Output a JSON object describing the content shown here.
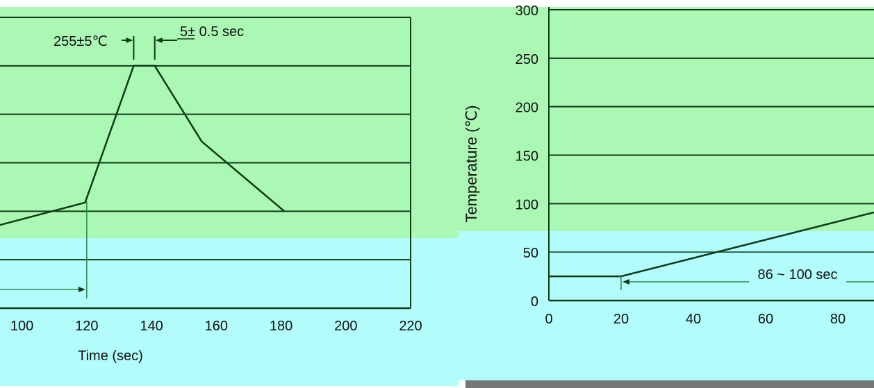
{
  "chart_data": [
    {
      "type": "line",
      "panel": "left",
      "xlabel": "Time  (sec)",
      "ylabel": "",
      "xlim": [
        90,
        220
      ],
      "ylim": [
        0,
        300
      ],
      "x_ticks": [
        100,
        120,
        140,
        160,
        180,
        200,
        220
      ],
      "y_gridlines": [
        50,
        100,
        150,
        200,
        250,
        300
      ],
      "grid": true,
      "series": [
        {
          "x": [
            90,
            119.5,
            134.5,
            141,
            155.5,
            181
          ],
          "y": [
            83,
            109,
            250,
            250,
            172,
            100
          ]
        }
      ],
      "annotations": {
        "peak_temp": "255±5℃",
        "peak_time": "5± 0.5 sec"
      },
      "marker_x": 120
    },
    {
      "type": "line",
      "panel": "right",
      "xlabel": "",
      "ylabel": "Temperature (℃)",
      "xlim": [
        0,
        90
      ],
      "ylim": [
        0,
        300
      ],
      "x_ticks": [
        0,
        20,
        40,
        60,
        80
      ],
      "y_ticks": [
        0,
        50,
        100,
        150,
        200,
        250,
        300
      ],
      "grid": true,
      "series": [
        {
          "x": [
            0,
            20,
            90
          ],
          "y": [
            25,
            25,
            91
          ]
        }
      ],
      "annotations": {
        "duration": "86 ~ 100 sec"
      }
    }
  ],
  "colors": {
    "upper_band": "#abf8b4",
    "lower_band": "#b2fdfb",
    "line": "#0e3a16",
    "gray_bar": "#777777"
  }
}
